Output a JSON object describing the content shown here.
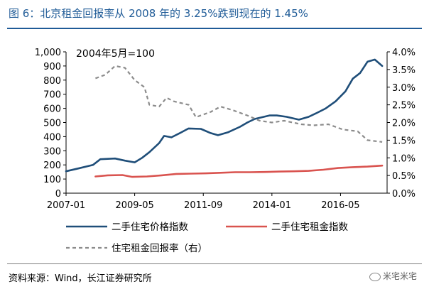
{
  "figure": {
    "title": "图 6：北京租金回报率从 2008 年的 3.25%跌到现在的 1.45%",
    "source": "资料来源：Wind，长江证券研究所",
    "watermark": "米宅米宅",
    "watermark_icon": "wechat-icon"
  },
  "colors": {
    "title": "#1f5b97",
    "price_index": "#1f4e79",
    "rent_index": "#d9534f",
    "yield": "#8c8c8c"
  },
  "chart_data": {
    "type": "line",
    "annotation": "2004年5月=100",
    "x_axis": {
      "range": [
        "2007-01",
        "2017-12"
      ],
      "ticks": [
        "2007-01",
        "2009-05",
        "2011-09",
        "2014-01",
        "2016-05"
      ]
    },
    "y_left": {
      "range": [
        0,
        1000
      ],
      "ticks": [
        "0",
        "100",
        "200",
        "300",
        "400",
        "500",
        "600",
        "700",
        "800",
        "900",
        "1,000"
      ]
    },
    "y_right": {
      "range": [
        0,
        4.0
      ],
      "unit": "%",
      "ticks": [
        "0.0%",
        "0.5%",
        "1.0%",
        "1.5%",
        "2.0%",
        "2.5%",
        "3.0%",
        "3.5%",
        "4.0%"
      ]
    },
    "legend": [
      "二手住宅价格指数",
      "二手住宅租金指数",
      "住宅租金回报率（右）"
    ],
    "series": [
      {
        "name": "二手住宅价格指数",
        "axis": "left",
        "style": "solid",
        "points": [
          [
            "2007-01",
            155
          ],
          [
            "2007-06",
            175
          ],
          [
            "2007-12",
            200
          ],
          [
            "2008-03",
            240
          ],
          [
            "2008-09",
            245
          ],
          [
            "2009-01",
            230
          ],
          [
            "2009-05",
            218
          ],
          [
            "2009-08",
            250
          ],
          [
            "2009-11",
            290
          ],
          [
            "2010-03",
            355
          ],
          [
            "2010-05",
            405
          ],
          [
            "2010-08",
            395
          ],
          [
            "2010-12",
            430
          ],
          [
            "2011-03",
            458
          ],
          [
            "2011-08",
            455
          ],
          [
            "2011-12",
            425
          ],
          [
            "2012-03",
            410
          ],
          [
            "2012-07",
            430
          ],
          [
            "2012-12",
            470
          ],
          [
            "2013-03",
            500
          ],
          [
            "2013-06",
            525
          ],
          [
            "2013-12",
            550
          ],
          [
            "2014-03",
            550
          ],
          [
            "2014-07",
            540
          ],
          [
            "2014-12",
            520
          ],
          [
            "2015-04",
            540
          ],
          [
            "2015-07",
            565
          ],
          [
            "2015-11",
            600
          ],
          [
            "2016-03",
            650
          ],
          [
            "2016-07",
            720
          ],
          [
            "2016-10",
            810
          ],
          [
            "2017-01",
            850
          ],
          [
            "2017-04",
            930
          ],
          [
            "2017-07",
            945
          ],
          [
            "2017-10",
            900
          ]
        ]
      },
      {
        "name": "二手住宅租金指数",
        "axis": "left",
        "style": "solid",
        "points": [
          [
            "2008-01",
            118
          ],
          [
            "2008-06",
            126
          ],
          [
            "2008-12",
            128
          ],
          [
            "2009-04",
            115
          ],
          [
            "2009-10",
            118
          ],
          [
            "2010-04",
            126
          ],
          [
            "2010-10",
            136
          ],
          [
            "2011-04",
            138
          ],
          [
            "2011-10",
            140
          ],
          [
            "2012-04",
            144
          ],
          [
            "2012-10",
            148
          ],
          [
            "2013-04",
            148
          ],
          [
            "2013-10",
            150
          ],
          [
            "2014-04",
            153
          ],
          [
            "2014-10",
            155
          ],
          [
            "2015-04",
            158
          ],
          [
            "2015-10",
            166
          ],
          [
            "2016-04",
            178
          ],
          [
            "2016-10",
            184
          ],
          [
            "2017-04",
            188
          ],
          [
            "2017-10",
            195
          ]
        ]
      },
      {
        "name": "住宅租金回报率（右）",
        "axis": "right",
        "style": "dashed",
        "points": [
          [
            "2008-01",
            3.25
          ],
          [
            "2008-05",
            3.35
          ],
          [
            "2008-09",
            3.6
          ],
          [
            "2009-01",
            3.55
          ],
          [
            "2009-05",
            3.2
          ],
          [
            "2009-09",
            3.0
          ],
          [
            "2009-11",
            2.5
          ],
          [
            "2010-03",
            2.45
          ],
          [
            "2010-06",
            2.7
          ],
          [
            "2010-09",
            2.6
          ],
          [
            "2011-03",
            2.5
          ],
          [
            "2011-06",
            2.15
          ],
          [
            "2011-12",
            2.3
          ],
          [
            "2012-04",
            2.45
          ],
          [
            "2012-09",
            2.35
          ],
          [
            "2013-03",
            2.2
          ],
          [
            "2013-08",
            2.05
          ],
          [
            "2014-01",
            2.0
          ],
          [
            "2014-06",
            2.05
          ],
          [
            "2015-01",
            1.95
          ],
          [
            "2015-06",
            1.92
          ],
          [
            "2015-12",
            1.95
          ],
          [
            "2016-06",
            1.8
          ],
          [
            "2016-12",
            1.75
          ],
          [
            "2017-04",
            1.5
          ],
          [
            "2017-10",
            1.45
          ]
        ]
      }
    ]
  }
}
